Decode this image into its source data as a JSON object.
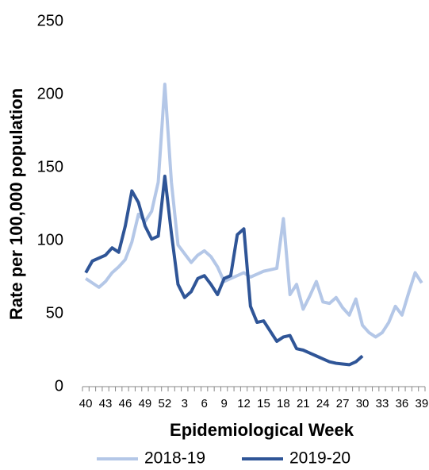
{
  "chart_data": {
    "type": "line",
    "x_label": "Epidemiological Week",
    "y_label": "Rate per 100,000 population",
    "categories": [
      "40",
      null,
      null,
      "43",
      null,
      null,
      "46",
      null,
      null,
      "49",
      null,
      null,
      "52",
      null,
      null,
      "3",
      null,
      null,
      "6",
      null,
      null,
      "9",
      null,
      null,
      "12",
      null,
      null,
      "15",
      null,
      null,
      "18",
      null,
      null,
      "21",
      null,
      null,
      "24",
      null,
      null,
      "27",
      null,
      null,
      "30",
      null,
      null,
      "33",
      null,
      null,
      "36",
      null,
      null,
      "39"
    ],
    "series": [
      {
        "name": "2018-19",
        "color": "#b4c7e7",
        "values": [
          74,
          71,
          68,
          72,
          78,
          82,
          87,
          99,
          118,
          113,
          120,
          140,
          207,
          140,
          97,
          91,
          85,
          90,
          93,
          89,
          82,
          72,
          74,
          76,
          78,
          75,
          77,
          79,
          80,
          81,
          115,
          63,
          70,
          53,
          62,
          72,
          58,
          57,
          61,
          54,
          49,
          60,
          42,
          37,
          34,
          37,
          44,
          55,
          49,
          64,
          78,
          71
        ]
      },
      {
        "name": "2019-20",
        "color": "#2f5597",
        "values": [
          78,
          86,
          88,
          90,
          95,
          92,
          110,
          134,
          126,
          110,
          101,
          103,
          144,
          105,
          70,
          61,
          65,
          74,
          76,
          70,
          63,
          74,
          76,
          104,
          108,
          55,
          44,
          45,
          38,
          31,
          34,
          35,
          26,
          25,
          23,
          21,
          19,
          17,
          16,
          15.5,
          15,
          17,
          21,
          null,
          null,
          null,
          null,
          null,
          null,
          null,
          null,
          null
        ]
      }
    ],
    "ylim": [
      0,
      250
    ],
    "yticks": [
      0,
      50,
      100,
      150,
      200,
      250
    ],
    "grid": false,
    "legend": "bottom"
  }
}
